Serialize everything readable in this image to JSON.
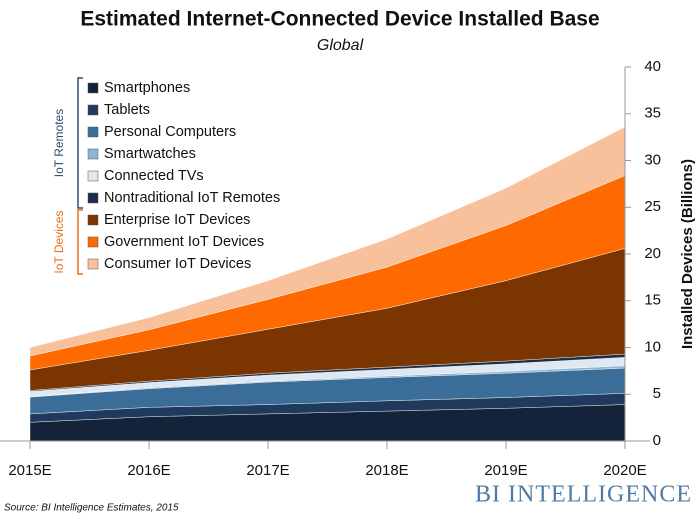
{
  "chart_data": {
    "type": "stacked_area",
    "title": "Estimated Internet-Connected Device Installed Base",
    "subtitle": "Global",
    "y_axis_label": "Installed Devices (Billions)",
    "source": "Source: BI Intelligence Estimates, 2015",
    "brand": "BI INTELLIGENCE",
    "legend_groups": [
      {
        "label": "IoT Remotes",
        "color": "#2e4d73"
      },
      {
        "label": "IoT Devices",
        "color": "#e8701e"
      }
    ],
    "categories": [
      "2015E",
      "2016E",
      "2017E",
      "2018E",
      "2019E",
      "2020E"
    ],
    "ylim": [
      0,
      40
    ],
    "yticks": [
      0,
      5,
      10,
      15,
      20,
      25,
      30,
      35,
      40
    ],
    "series": [
      {
        "name": "Smartphones",
        "color": "#14233a",
        "values": [
          2.0,
          2.6,
          2.9,
          3.2,
          3.5,
          3.9
        ]
      },
      {
        "name": "Tablets",
        "color": "#1f3a5c",
        "values": [
          0.9,
          1.0,
          1.0,
          1.1,
          1.15,
          1.2
        ]
      },
      {
        "name": "Personal Computers",
        "color": "#3a6e99",
        "values": [
          1.8,
          2.0,
          2.4,
          2.5,
          2.6,
          2.7
        ]
      },
      {
        "name": "Smartwatches",
        "color": "#8cb4d6",
        "values": [
          0.05,
          0.1,
          0.1,
          0.15,
          0.2,
          0.25
        ]
      },
      {
        "name": "Connected TVs",
        "color": "#dfe8f1",
        "values": [
          0.55,
          0.55,
          0.65,
          0.7,
          0.8,
          0.9
        ]
      },
      {
        "name": "Nontraditional IoT Remotes",
        "color": "#1b2e4a",
        "values": [
          0.1,
          0.15,
          0.2,
          0.25,
          0.3,
          0.35
        ]
      },
      {
        "name": "Enterprise IoT Devices",
        "color": "#7a3500",
        "values": [
          2.2,
          3.3,
          4.7,
          6.3,
          8.6,
          11.3
        ]
      },
      {
        "name": "Government IoT Devices",
        "color": "#ff6a00",
        "values": [
          1.5,
          2.2,
          3.2,
          4.4,
          5.9,
          7.8
        ]
      },
      {
        "name": "Consumer IoT Devices",
        "color": "#f9c09c",
        "values": [
          0.9,
          1.3,
          2.0,
          3.0,
          4.0,
          5.2
        ]
      }
    ]
  }
}
